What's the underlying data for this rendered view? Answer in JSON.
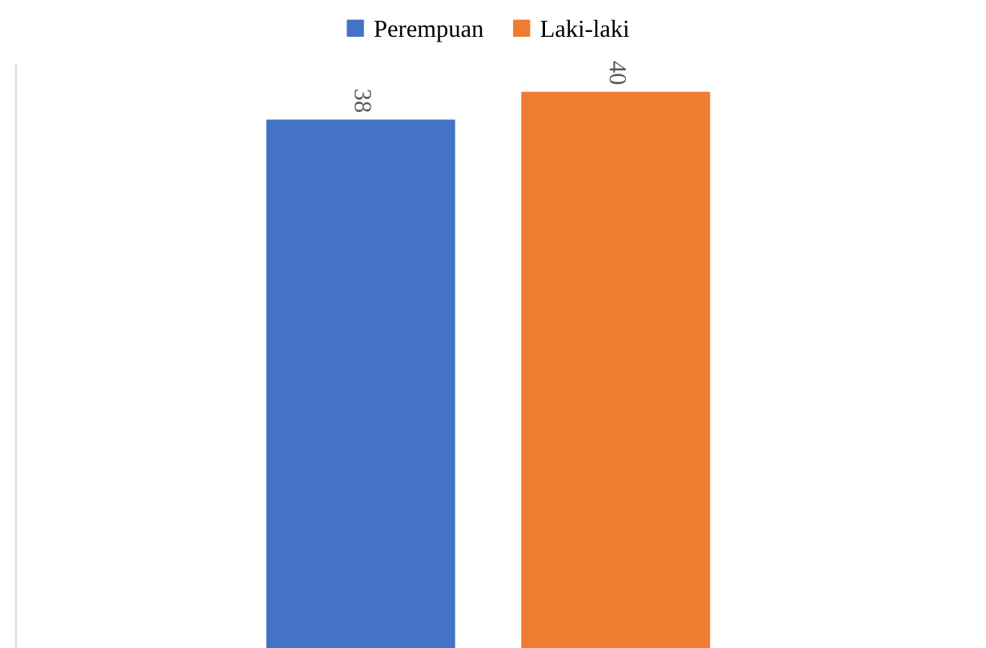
{
  "chart_data": {
    "type": "bar",
    "categories": [
      null
    ],
    "series": [
      {
        "name": "Perempuan",
        "color": "#4472c4",
        "values": [
          38
        ]
      },
      {
        "name": "Laki-laki",
        "color": "#ed7d31",
        "values": [
          40
        ]
      }
    ],
    "data_labels": true,
    "legend": "top",
    "grid": false
  }
}
